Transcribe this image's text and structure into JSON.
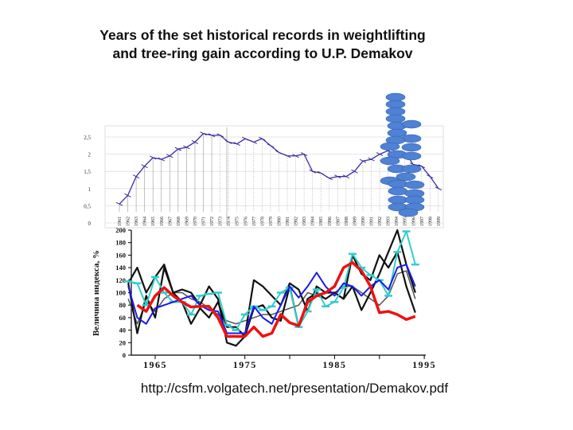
{
  "slide": {
    "title_line1": "Years of the set historical records in weightlifting",
    "title_line2": "and tree-ring gain according to U.P. Demakov",
    "source_url": "http://csfm.volgatech.net/presentation/Demakov.pdf"
  },
  "chart_data": [
    {
      "type": "line",
      "title": "",
      "yticks": [
        "0",
        "0,5",
        "1",
        "1,5",
        "2",
        "2,5"
      ],
      "ylim": [
        0,
        2.5
      ],
      "x": [
        1961,
        1962,
        1963,
        1964,
        1965,
        1966,
        1967,
        1968,
        1969,
        1970,
        1971,
        1972,
        1973,
        1974,
        1975,
        1976,
        1977,
        1978,
        1979,
        1980,
        1981,
        1982,
        1983,
        1984,
        1985,
        1986,
        1987,
        1988,
        1989,
        1990,
        1991,
        1992,
        1993,
        1994,
        1995,
        1996,
        1997,
        1998,
        1999
      ],
      "series": [
        {
          "name": "records",
          "color": "#3a2fa0",
          "values": [
            0.55,
            0.8,
            1.35,
            1.65,
            1.9,
            1.85,
            1.95,
            2.15,
            2.2,
            2.35,
            2.6,
            2.55,
            2.55,
            2.35,
            2.3,
            2.45,
            2.35,
            2.45,
            2.25,
            2.05,
            1.95,
            1.95,
            2.0,
            1.5,
            1.45,
            1.3,
            1.35,
            1.35,
            1.5,
            1.8,
            1.85,
            2.0,
            2.1,
            1.95,
            2.05,
            1.7,
            1.65,
            1.35,
            1.0
          ]
        }
      ],
      "grid": true
    },
    {
      "type": "line",
      "ylabel": "Величина индекса, %",
      "ylim": [
        0,
        200
      ],
      "yticks": [
        "0",
        "20",
        "40",
        "60",
        "80",
        "100",
        "120",
        "140",
        "160",
        "180",
        "200"
      ],
      "xticks": [
        "1965",
        "1975",
        "1985",
        "1995"
      ],
      "xlim": [
        1961,
        1995
      ],
      "x": [
        1962,
        1963,
        1964,
        1965,
        1966,
        1967,
        1968,
        1969,
        1970,
        1971,
        1972,
        1973,
        1974,
        1975,
        1976,
        1977,
        1978,
        1979,
        1980,
        1981,
        1982,
        1983,
        1984,
        1985,
        1986,
        1987,
        1988,
        1989,
        1990,
        1991,
        1992,
        1993,
        1994
      ],
      "series": [
        {
          "name": "grey",
          "color": "#555555",
          "width": 1.5,
          "values": [
            90,
            50,
            85,
            70,
            90,
            100,
            100,
            90,
            85,
            75,
            65,
            55,
            50,
            55,
            60,
            65,
            65,
            70,
            75,
            80,
            100,
            95,
            90,
            100,
            110,
            110,
            100,
            90,
            80,
            95,
            130,
            135,
            90
          ]
        },
        {
          "name": "black-1",
          "color": "#111111",
          "width": 2.2,
          "values": [
            115,
            140,
            100,
            125,
            145,
            100,
            105,
            100,
            80,
            110,
            90,
            20,
            15,
            30,
            120,
            110,
            95,
            80,
            115,
            105,
            70,
            110,
            100,
            100,
            90,
            160,
            130,
            120,
            160,
            140,
            165,
            110,
            68
          ]
        },
        {
          "name": "black-2",
          "color": "#111111",
          "width": 2.2,
          "values": [
            115,
            35,
            95,
            60,
            140,
            100,
            85,
            50,
            75,
            60,
            85,
            45,
            45,
            30,
            75,
            80,
            60,
            55,
            110,
            45,
            90,
            100,
            90,
            100,
            90,
            110,
            72,
            100,
            130,
            165,
            200,
            145,
            100
          ]
        },
        {
          "name": "cyan",
          "color": "#33cccc",
          "width": 2,
          "values": [
            118,
            115,
            80,
            125,
            100,
            85,
            85,
            65,
            95,
            98,
            100,
            48,
            40,
            65,
            78,
            72,
            78,
            100,
            108,
            45,
            70,
            105,
            78,
            85,
            108,
            162,
            140,
            128,
            120,
            95,
            165,
            198,
            145
          ]
        },
        {
          "name": "blue",
          "color": "#1a1aee",
          "width": 2,
          "values": [
            110,
            60,
            50,
            75,
            80,
            85,
            90,
            95,
            80,
            72,
            70,
            35,
            35,
            35,
            78,
            60,
            50,
            80,
            110,
            92,
            110,
            132,
            110,
            95,
            115,
            110,
            95,
            110,
            120,
            105,
            140,
            145,
            110
          ]
        },
        {
          "name": "red",
          "color": "#ee1111",
          "width": 3.5,
          "values": [
            null,
            80,
            70,
            95,
            108,
            95,
            85,
            77,
            78,
            78,
            60,
            30,
            30,
            30,
            45,
            30,
            35,
            65,
            52,
            47,
            85,
            95,
            100,
            110,
            140,
            148,
            135,
            110,
            68,
            70,
            65,
            57,
            62
          ]
        }
      ]
    }
  ]
}
